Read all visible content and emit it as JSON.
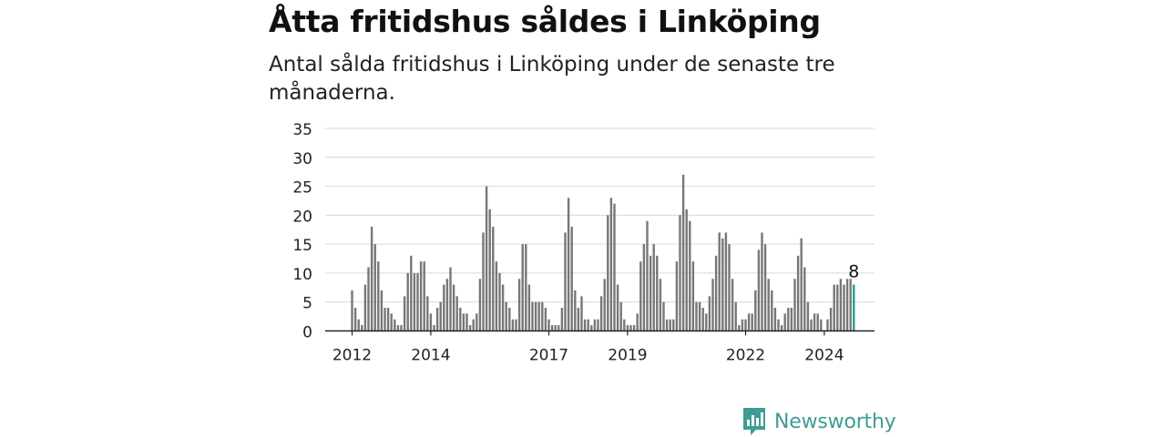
{
  "title": "Åtta fritidshus såldes i Linköping",
  "subtitle": "Antal sålda fritidshus i Linköping under de senaste tre månaderna.",
  "brand": {
    "name": "Newsworthy",
    "icon": "newsworthy-logo-icon",
    "color": "#3f9c95"
  },
  "chart_data": {
    "type": "bar",
    "title": "Åtta fritidshus såldes i Linköping",
    "subtitle": "Antal sålda fritidshus i Linköping under de senaste tre månaderna.",
    "xlabel": "",
    "ylabel": "",
    "ylim": [
      0,
      35
    ],
    "yticks": [
      0,
      5,
      10,
      15,
      20,
      25,
      30,
      35
    ],
    "grid": true,
    "xtick_labels": [
      {
        "label": "2012",
        "index": 0
      },
      {
        "label": "2014",
        "index": 24
      },
      {
        "label": "2017",
        "index": 60
      },
      {
        "label": "2019",
        "index": 84
      },
      {
        "label": "2022",
        "index": 120
      },
      {
        "label": "2024",
        "index": 144
      }
    ],
    "bar_color": "#777777",
    "highlight_color": "#1f9e8f",
    "highlight_label": "8",
    "values": [
      7,
      4,
      2,
      1,
      8,
      11,
      18,
      15,
      12,
      7,
      4,
      4,
      3,
      2,
      1,
      1,
      6,
      10,
      13,
      10,
      10,
      12,
      12,
      6,
      3,
      1,
      4,
      5,
      8,
      9,
      11,
      8,
      6,
      4,
      3,
      3,
      1,
      2,
      3,
      9,
      17,
      25,
      21,
      18,
      12,
      10,
      8,
      5,
      4,
      2,
      2,
      9,
      15,
      15,
      8,
      5,
      5,
      5,
      5,
      4,
      2,
      1,
      1,
      1,
      4,
      17,
      23,
      18,
      7,
      4,
      6,
      2,
      2,
      1,
      2,
      2,
      6,
      9,
      20,
      23,
      22,
      8,
      5,
      2,
      1,
      1,
      1,
      3,
      12,
      15,
      19,
      13,
      15,
      13,
      9,
      5,
      2,
      2,
      2,
      12,
      20,
      27,
      21,
      19,
      12,
      5,
      5,
      4,
      3,
      6,
      9,
      13,
      17,
      16,
      17,
      15,
      9,
      5,
      1,
      2,
      2,
      3,
      3,
      7,
      14,
      17,
      15,
      9,
      7,
      4,
      2,
      1,
      3,
      4,
      4,
      9,
      13,
      16,
      11,
      5,
      2,
      3,
      3,
      2,
      0,
      2,
      4,
      8,
      8,
      9,
      8,
      9,
      9,
      8
    ]
  }
}
